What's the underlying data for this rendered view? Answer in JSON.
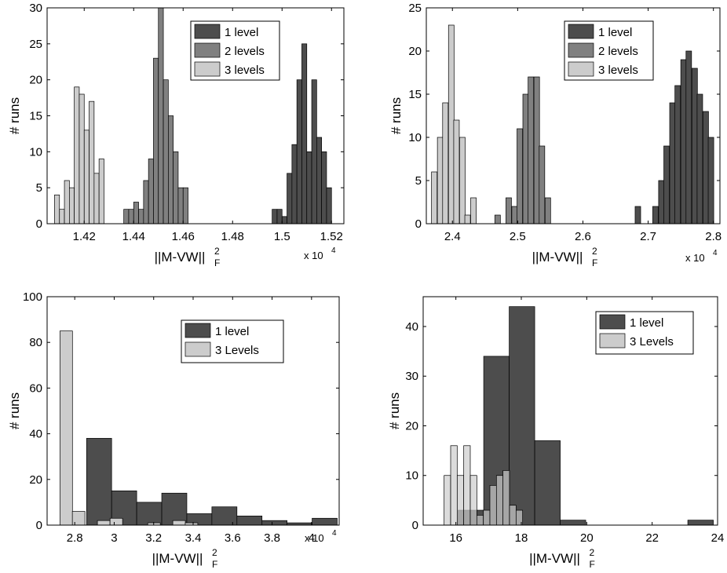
{
  "colors": {
    "level1": "#4d4d4d",
    "level2": "#808080",
    "level3": "#cccccc",
    "edge": "#000000"
  },
  "chart_data": [
    {
      "type": "bar",
      "subtype": "histogram",
      "xlabel": "||M-VW||",
      "xlabel_sup": "2",
      "xlabel_sub": "F",
      "ylabel": "# runs",
      "multiplier": "x 10",
      "multiplier_exp": "4",
      "xlim": [
        1.405,
        1.525
      ],
      "ylim": [
        0,
        30
      ],
      "xticks": [
        1.42,
        1.44,
        1.46,
        1.48,
        1.5,
        1.52
      ],
      "xtick_labels": [
        "1.42",
        "1.44",
        "1.46",
        "1.48",
        "1.5",
        "1.52"
      ],
      "yticks": [
        0,
        5,
        10,
        15,
        20,
        25,
        30
      ],
      "legend": {
        "position": "top-right",
        "entries": [
          "1 level",
          "2 levels",
          "3 levels"
        ]
      },
      "series": [
        {
          "name": "1 level",
          "bin_width": 0.002,
          "bin_starts": [
            1.496,
            1.498,
            1.5,
            1.502,
            1.504,
            1.506,
            1.508,
            1.51,
            1.512,
            1.514,
            1.516,
            1.518
          ],
          "counts": [
            2,
            2,
            1,
            7,
            11,
            20,
            25,
            10,
            20,
            12,
            10,
            5
          ]
        },
        {
          "name": "2 levels",
          "bin_width": 0.002,
          "bin_starts": [
            1.436,
            1.438,
            1.44,
            1.442,
            1.444,
            1.446,
            1.448,
            1.45,
            1.452,
            1.454,
            1.456,
            1.458,
            1.46
          ],
          "counts": [
            2,
            2,
            3,
            2,
            6,
            9,
            23,
            30,
            20,
            15,
            10,
            5,
            5
          ]
        },
        {
          "name": "3 levels",
          "bin_width": 0.002,
          "bin_starts": [
            1.408,
            1.41,
            1.412,
            1.414,
            1.416,
            1.418,
            1.42,
            1.422,
            1.424,
            1.426
          ],
          "counts": [
            4,
            2,
            6,
            5,
            19,
            18,
            13,
            17,
            7,
            9
          ]
        }
      ]
    },
    {
      "type": "bar",
      "subtype": "histogram",
      "xlabel": "||M-VW||",
      "xlabel_sup": "2",
      "xlabel_sub": "F",
      "ylabel": "# runs",
      "multiplier": "x 10",
      "multiplier_exp": "4",
      "xlim": [
        2.36,
        2.81
      ],
      "ylim": [
        0,
        25
      ],
      "xticks": [
        2.4,
        2.5,
        2.6,
        2.7,
        2.8
      ],
      "xtick_labels": [
        "2.4",
        "2.5",
        "2.6",
        "2.7",
        "2.8"
      ],
      "yticks": [
        0,
        5,
        10,
        15,
        20,
        25
      ],
      "legend": {
        "position": "top-right",
        "entries": [
          "1 level",
          "2 levels",
          "3 levels"
        ]
      },
      "series": [
        {
          "name": "1 level",
          "bin_width": 0.0085,
          "bin_starts": [
            2.68,
            2.698,
            2.707,
            2.716,
            2.724,
            2.733,
            2.741,
            2.75,
            2.758,
            2.767,
            2.775,
            2.784,
            2.792
          ],
          "counts": [
            2,
            0,
            2,
            5,
            9,
            14,
            16,
            19,
            20,
            18,
            15,
            13,
            10
          ]
        },
        {
          "name": "2 levels",
          "bin_width": 0.0085,
          "bin_starts": [
            2.465,
            2.482,
            2.491,
            2.499,
            2.508,
            2.516,
            2.525,
            2.533,
            2.542
          ],
          "counts": [
            1,
            3,
            2,
            11,
            15,
            17,
            17,
            9,
            3
          ]
        },
        {
          "name": "3 levels",
          "bin_width": 0.0085,
          "bin_starts": [
            2.368,
            2.377,
            2.385,
            2.394,
            2.402,
            2.411,
            2.419,
            2.428
          ],
          "counts": [
            6,
            10,
            14,
            23,
            12,
            10,
            1,
            3
          ]
        }
      ]
    },
    {
      "type": "bar",
      "subtype": "histogram",
      "xlabel": "||M-VW||",
      "xlabel_sup": "2",
      "xlabel_sub": "F",
      "ylabel": "# runs",
      "multiplier": "x 10",
      "multiplier_exp": "4",
      "xlim": [
        2.66,
        4.14
      ],
      "ylim": [
        0,
        100
      ],
      "xticks": [
        2.8,
        3.0,
        3.2,
        3.4,
        3.6,
        3.8,
        4.0
      ],
      "xtick_labels": [
        "2.8",
        "3",
        "3.2",
        "3.4",
        "3.6",
        "3.8",
        "4"
      ],
      "yticks": [
        0,
        20,
        40,
        60,
        80,
        100
      ],
      "legend": {
        "position": "top-right",
        "entries": [
          "1 level",
          "3 Levels"
        ]
      },
      "series": [
        {
          "name": "1 level",
          "bin_width": 0.127,
          "bin_starts": [
            2.86,
            2.987,
            3.114,
            3.241,
            3.368,
            3.495,
            3.622,
            3.749,
            3.876,
            4.003
          ],
          "counts": [
            38,
            15,
            10,
            14,
            5,
            8,
            4,
            2,
            1,
            3
          ]
        },
        {
          "name": "3 Levels",
          "bin_width": 0.0635,
          "bin_starts": [
            2.725,
            2.788,
            2.915,
            2.979,
            3.17,
            3.297,
            3.36
          ],
          "counts": [
            85,
            6,
            2,
            3,
            1,
            2,
            1
          ]
        }
      ]
    },
    {
      "type": "bar",
      "subtype": "histogram",
      "xlabel": "||M-VW||",
      "xlabel_sup": "2",
      "xlabel_sub": "F",
      "ylabel": "# runs",
      "xlim": [
        15,
        24
      ],
      "ylim": [
        0,
        46
      ],
      "xticks": [
        16,
        18,
        20,
        22,
        24
      ],
      "xtick_labels": [
        "16",
        "18",
        "20",
        "22",
        "24"
      ],
      "yticks": [
        0,
        10,
        20,
        30,
        40
      ],
      "legend": {
        "position": "top-right",
        "entries": [
          "1 level",
          "3 Levels"
        ]
      },
      "series": [
        {
          "name": "1 level",
          "bin_width": 0.78,
          "bin_starts": [
            16.07,
            16.85,
            17.63,
            18.41,
            19.19,
            19.97,
            20.75,
            21.53,
            22.31,
            23.09
          ],
          "counts": [
            3,
            34,
            44,
            17,
            1,
            0,
            0,
            0,
            0,
            1
          ]
        },
        {
          "name": "3 Levels",
          "bin_width": 0.2,
          "bin_starts": [
            15.64,
            15.84,
            16.04,
            16.24,
            16.44,
            16.64,
            16.84,
            17.04,
            17.24,
            17.44,
            17.64,
            17.84,
            18.04
          ],
          "counts": [
            10,
            16,
            10,
            16,
            10,
            2,
            3,
            8,
            10,
            11,
            4,
            3,
            0
          ]
        }
      ]
    }
  ]
}
